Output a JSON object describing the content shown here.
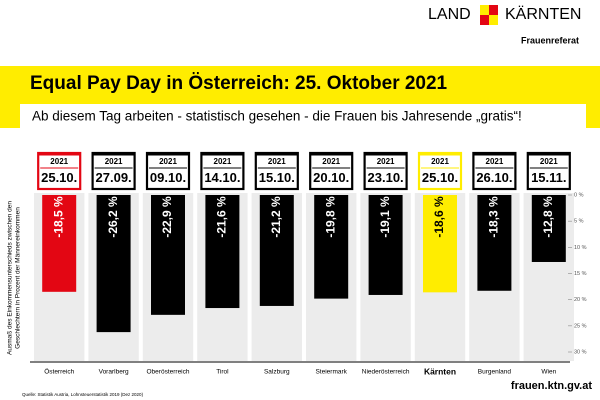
{
  "header": {
    "brand_left": "LAND",
    "brand_right": "KÄRNTEN",
    "department": "Frauenreferat"
  },
  "chart_data": {
    "type": "bar",
    "title": "Equal Pay Day in Österreich: 25. Oktober 2021",
    "subtitle": "Ab diesem Tag arbeiten - statistisch gesehen - die Frauen bis Jahresende „gratis“!",
    "y_label": [
      "Ausmaß des Einkommensunterschieds zwischen den",
      "Geschlechtern in Prozent der Männereinkommen"
    ],
    "categories": [
      "Österreich",
      "Vorarlberg",
      "Oberösterreich",
      "Tirol",
      "Salzburg",
      "Steiermark",
      "Niederösterreich",
      "Kärnten",
      "Burgenland",
      "Wien"
    ],
    "year": "2021",
    "dates": [
      "25.10.",
      "27.09.",
      "09.10.",
      "14.10.",
      "15.10.",
      "20.10.",
      "23.10.",
      "25.10.",
      "26.10.",
      "15.11."
    ],
    "values": [
      -18.5,
      -26.2,
      -22.9,
      -21.6,
      -21.2,
      -19.8,
      -19.1,
      -18.6,
      -18.3,
      -12.8
    ],
    "value_labels": [
      "-18,5 %",
      "-26,2 %",
      "-22,9 %",
      "-21,6 %",
      "-21,2 %",
      "-19,8 %",
      "-19,1 %",
      "-18,6 %",
      "-18,3 %",
      "-12,8 %"
    ],
    "colors": [
      "#e30613",
      "#000000",
      "#000000",
      "#000000",
      "#000000",
      "#000000",
      "#000000",
      "#ffed00",
      "#000000",
      "#000000"
    ],
    "ylim": [
      0,
      -30
    ],
    "yticks": [
      {
        "value": 0,
        "label": "0 %"
      },
      {
        "value": -5,
        "label": "5 %"
      },
      {
        "value": -10,
        "label": "10 %"
      },
      {
        "value": -15,
        "label": "15 %"
      },
      {
        "value": -20,
        "label": "20 %"
      },
      {
        "value": -25,
        "label": "25 %"
      },
      {
        "value": -30,
        "label": "30 %"
      }
    ]
  },
  "footer": {
    "url": "frauen.ktn.gv.at",
    "source": "Quelle: Statistik Austria, Lohnsteuerstatistik 2019 (Dez 2020)"
  }
}
